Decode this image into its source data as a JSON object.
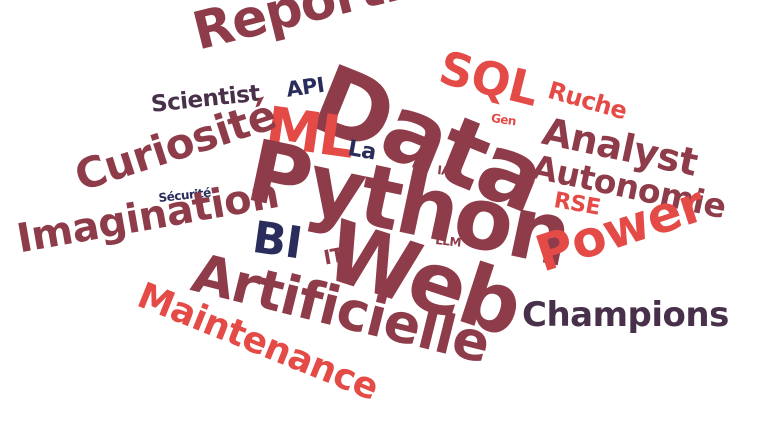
{
  "colors": {
    "maroon": "#8e3b4a",
    "red": "#e44a46",
    "navy": "#2a2d5c",
    "plum": "#48304a"
  },
  "words": [
    {
      "id": "reporting",
      "text": "Reporting",
      "color": "#8e3b4a"
    },
    {
      "id": "sql",
      "text": "SQL",
      "color": "#e44a46"
    },
    {
      "id": "ruche",
      "text": "Ruche",
      "color": "#e44a46"
    },
    {
      "id": "api",
      "text": "API",
      "color": "#2a2d5c"
    },
    {
      "id": "data",
      "text": "Data",
      "color": "#8e3b4a"
    },
    {
      "id": "gen",
      "text": "Gen",
      "color": "#e44a46"
    },
    {
      "id": "scientist",
      "text": "Scientist",
      "color": "#48304a"
    },
    {
      "id": "ml",
      "text": "ML",
      "color": "#e44a46"
    },
    {
      "id": "analyst",
      "text": "Analyst",
      "color": "#8e3b4a"
    },
    {
      "id": "curiosite",
      "text": "Curiosité",
      "color": "#8e3b4a"
    },
    {
      "id": "la",
      "text": "La",
      "color": "#2a2d5c"
    },
    {
      "id": "ia",
      "text": "IA",
      "color": "#8e3b4a"
    },
    {
      "id": "autonomie",
      "text": "Autonomie",
      "color": "#8e3b4a"
    },
    {
      "id": "securite",
      "text": "Sécurité",
      "color": "#2a2d5c"
    },
    {
      "id": "python",
      "text": "Python",
      "color": "#8e3b4a"
    },
    {
      "id": "rse",
      "text": "RSE",
      "color": "#e44a46"
    },
    {
      "id": "imagination",
      "text": "Imagination",
      "color": "#8e3b4a"
    },
    {
      "id": "bi",
      "text": "BI",
      "color": "#2a2d5c"
    },
    {
      "id": "llm",
      "text": "LLM",
      "color": "#8e3b4a"
    },
    {
      "id": "power",
      "text": "Power",
      "color": "#e44a46"
    },
    {
      "id": "it",
      "text": "IT",
      "color": "#8e3b4a"
    },
    {
      "id": "web",
      "text": "Web",
      "color": "#8e3b4a"
    },
    {
      "id": "artificielle",
      "text": "Artificielle",
      "color": "#8e3b4a"
    },
    {
      "id": "champions",
      "text": "Champions",
      "color": "#48304a"
    },
    {
      "id": "maintenance",
      "text": "Maintenance",
      "color": "#e44a46"
    }
  ]
}
